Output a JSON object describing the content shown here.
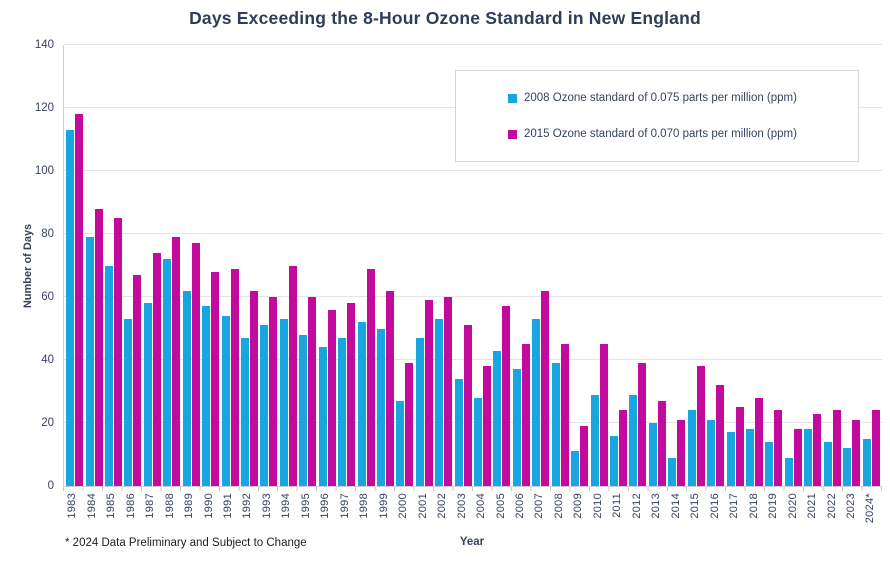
{
  "chart_data": {
    "type": "bar",
    "title": "Days Exceeding the 8-Hour Ozone Standard in New England",
    "xlabel": "Year",
    "ylabel": "Number of Days",
    "footnote": "* 2024 Data Preliminary and Subject to Change",
    "ylim": [
      0,
      140
    ],
    "ytick_step": 20,
    "grid": true,
    "legend_position": "top-right",
    "categories": [
      "1983",
      "1984",
      "1985",
      "1986",
      "1987",
      "1988",
      "1989",
      "1990",
      "1991",
      "1992",
      "1993",
      "1994",
      "1995",
      "1996",
      "1997",
      "1998",
      "1999",
      "2000",
      "2001",
      "2002",
      "2003",
      "2004",
      "2005",
      "2006",
      "2007",
      "2008",
      "2009",
      "2010",
      "2011",
      "2012",
      "2013",
      "2014",
      "2015",
      "2016",
      "2017",
      "2018",
      "2019",
      "2020",
      "2021",
      "2022",
      "2023",
      "2024*"
    ],
    "series": [
      {
        "name": "2008 Ozone standard of 0.075 parts per million (ppm)",
        "color": "#18a6e0",
        "values": [
          113,
          79,
          70,
          53,
          58,
          72,
          62,
          57,
          54,
          47,
          51,
          53,
          48,
          44,
          47,
          52,
          50,
          27,
          47,
          53,
          34,
          28,
          43,
          37,
          53,
          39,
          11,
          29,
          16,
          29,
          20,
          9,
          24,
          21,
          17,
          18,
          14,
          9,
          18,
          14,
          12,
          15
        ]
      },
      {
        "name": "2015 Ozone standard of 0.070 parts per million (ppm)",
        "color": "#c20a9c",
        "values": [
          118,
          88,
          85,
          67,
          74,
          79,
          77,
          68,
          69,
          62,
          60,
          70,
          60,
          56,
          58,
          69,
          62,
          39,
          59,
          60,
          51,
          38,
          57,
          45,
          62,
          45,
          19,
          45,
          24,
          39,
          27,
          21,
          38,
          32,
          25,
          28,
          24,
          18,
          23,
          24,
          21,
          24
        ]
      }
    ]
  }
}
